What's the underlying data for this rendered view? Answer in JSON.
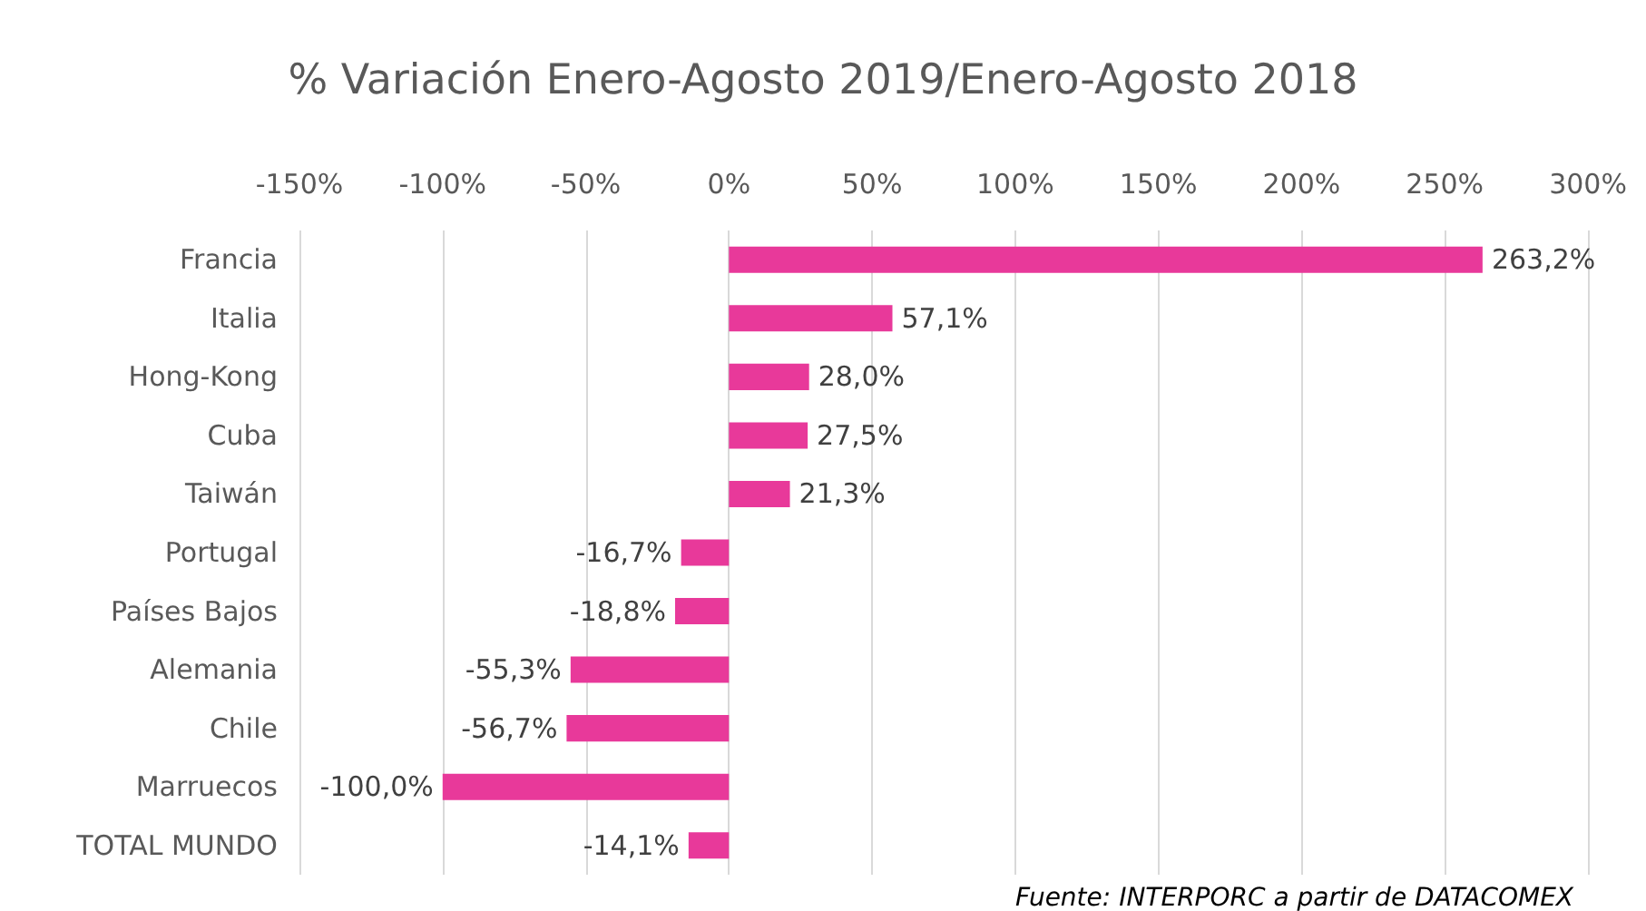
{
  "chart_data": {
    "type": "bar",
    "orientation": "horizontal",
    "title": "% Variación Enero-Agosto 2019/Enero-Agosto 2018",
    "categories": [
      "Francia",
      "Italia",
      "Hong-Kong",
      "Cuba",
      "Taiwán",
      "Portugal",
      "Países Bajos",
      "Alemania",
      "Chile",
      "Marruecos",
      "TOTAL MUNDO"
    ],
    "values": [
      263.2,
      57.1,
      28.0,
      27.5,
      21.3,
      -16.7,
      -18.8,
      -55.3,
      -56.7,
      -100.0,
      -14.1
    ],
    "value_labels": [
      "263,2%",
      "57,1%",
      "28,0%",
      "27,5%",
      "21,3%",
      "-16,7%",
      "-18,8%",
      "-55,3%",
      "-56,7%",
      "-100,0%",
      "-14,1%"
    ],
    "color": "#e8399a",
    "xlim": [
      -150,
      300
    ],
    "xticks": [
      {
        "value": -150,
        "label": "-150%"
      },
      {
        "value": -100,
        "label": "-100%"
      },
      {
        "value": -50,
        "label": "-50%"
      },
      {
        "value": 0,
        "label": "0%"
      },
      {
        "value": 50,
        "label": "50%"
      },
      {
        "value": 100,
        "label": "100%"
      },
      {
        "value": 150,
        "label": "150%"
      },
      {
        "value": 200,
        "label": "200%"
      },
      {
        "value": 250,
        "label": "250%"
      },
      {
        "value": 300,
        "label": "300%"
      }
    ],
    "grid": "x",
    "annotations": [
      "Fuente: INTERPORC a partir de DATACOMEX"
    ]
  }
}
